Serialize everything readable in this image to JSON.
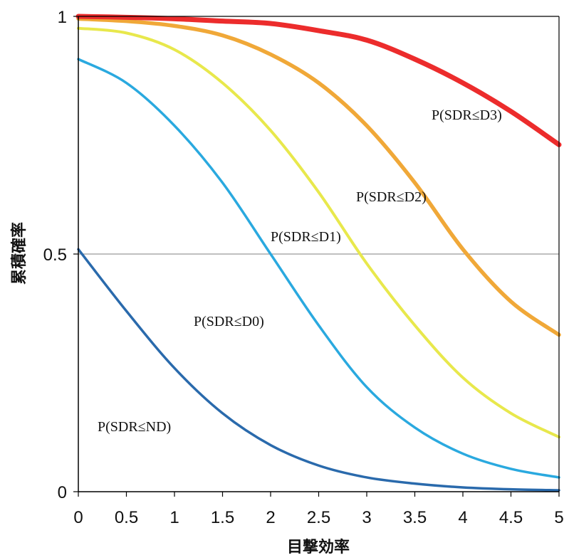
{
  "chart_data": {
    "type": "line",
    "title": "",
    "xlabel": "目撃効率",
    "ylabel": "累積確率",
    "xlim": [
      0,
      5
    ],
    "ylim": [
      0,
      1
    ],
    "xticks": [
      "0",
      "0.5",
      "1",
      "1.5",
      "2",
      "2.5",
      "3",
      "3.5",
      "4",
      "4.5",
      "5"
    ],
    "yticks": [
      "0",
      "0.5",
      "1"
    ],
    "reference_line": {
      "y": 0.5,
      "color": "#999999"
    },
    "x": [
      0,
      0.5,
      1,
      1.5,
      2,
      2.5,
      3,
      3.5,
      4,
      4.5,
      5
    ],
    "series": [
      {
        "name": "P(SDR≤ND)",
        "color": "#2a6aac",
        "values": [
          0.51,
          0.38,
          0.26,
          0.165,
          0.098,
          0.055,
          0.03,
          0.017,
          0.009,
          0.005,
          0.003
        ]
      },
      {
        "name": "P(SDR≤D0)",
        "color": "#2aa9df",
        "values": [
          0.91,
          0.86,
          0.77,
          0.65,
          0.5,
          0.35,
          0.22,
          0.135,
          0.08,
          0.048,
          0.03
        ]
      },
      {
        "name": "P(SDR≤D1)",
        "color": "#e8e84c",
        "values": [
          0.975,
          0.965,
          0.93,
          0.86,
          0.76,
          0.63,
          0.48,
          0.35,
          0.24,
          0.165,
          0.115
        ]
      },
      {
        "name": "P(SDR≤D2)",
        "color": "#f0a838",
        "values": [
          0.995,
          0.99,
          0.98,
          0.96,
          0.92,
          0.86,
          0.77,
          0.65,
          0.51,
          0.4,
          0.33
        ]
      },
      {
        "name": "P(SDR≤D3)",
        "color": "#ec2c2c",
        "values": [
          1.0,
          0.998,
          0.995,
          0.99,
          0.985,
          0.97,
          0.95,
          0.91,
          0.86,
          0.8,
          0.73
        ]
      }
    ]
  }
}
